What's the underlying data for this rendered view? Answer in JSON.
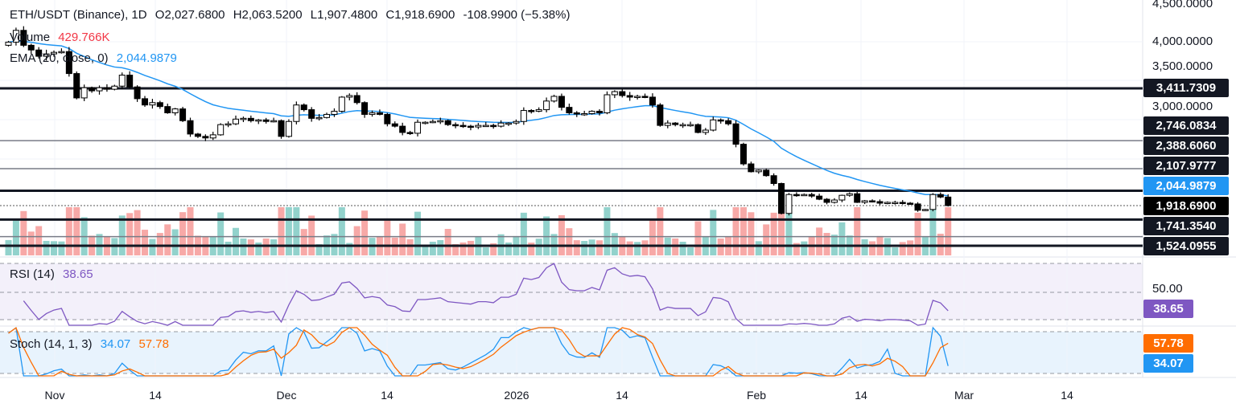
{
  "header": {
    "symbol": "ETH/USDT (Binance), 1D",
    "open": "O2,027.6800",
    "high": "H2,063.5200",
    "low": "L1,907.4800",
    "close": "C1,918.6900",
    "change": "-108.9900 (−5.38%)",
    "volume_label": "Volume",
    "volume_value": "429.766K",
    "ema_label": "EMA (20, close, 0)",
    "ema_value": "2,044.9879"
  },
  "rsi": {
    "label": "RSI (14)",
    "value": "38.65",
    "level_label": "50.00"
  },
  "stoch": {
    "label": "Stoch (14, 1, 3)",
    "k_value": "34.07",
    "d_value": "57.78"
  },
  "price_axis": [
    "4,500.0000",
    "4,000.0000",
    "3,500.0000",
    "3,000.0000"
  ],
  "levels": [
    {
      "label": "3,411.7309",
      "price": 3411.7309,
      "style": "thick"
    },
    {
      "label": "2,746.0834",
      "price": 2746.0834,
      "style": "thin"
    },
    {
      "label": "2,388.6060",
      "price": 2388.606,
      "style": "thin"
    },
    {
      "label": "2,107.9777",
      "price": 2107.9777,
      "style": "thick"
    },
    {
      "label": "2,044.9879",
      "price": 2044.9879,
      "style": "ema"
    },
    {
      "label": "1,918.6900",
      "price": 1918.69,
      "style": "close"
    },
    {
      "label": "1,741.3540",
      "price": 1741.354,
      "style": "thick"
    },
    {
      "label": "1,524.0955",
      "price": 1524.0955,
      "style": "thin"
    }
  ],
  "time_axis": [
    "Nov",
    "14",
    "Dec",
    "14",
    "2026",
    "14",
    "Feb",
    "14",
    "Mar",
    "14"
  ],
  "colors": {
    "up": "#26a69a",
    "down": "#ef5350",
    "ema": "#2196f3",
    "rsi": "#7e57c2",
    "stoch_k": "#2196f3",
    "stoch_d": "#ff6d00"
  },
  "chart_data": {
    "type": "candlestick",
    "title": "ETH/USDT (Binance), 1D",
    "start_date": "2025-10-26",
    "closes": [
      4000,
      4150,
      3960,
      3900,
      3820,
      3850,
      3870,
      3880,
      3600,
      3290,
      3420,
      3380,
      3420,
      3400,
      3440,
      3580,
      3430,
      3280,
      3200,
      3230,
      3180,
      3100,
      3150,
      3000,
      2830,
      2800,
      2780,
      2820,
      2950,
      2960,
      3020,
      3030,
      3000,
      3010,
      2990,
      3000,
      2800,
      2990,
      3200,
      3140,
      3030,
      3040,
      3080,
      3120,
      3300,
      3320,
      3230,
      3080,
      3100,
      3080,
      2960,
      2930,
      2850,
      2840,
      2980,
      2980,
      2990,
      3000,
      2950,
      2940,
      2930,
      2920,
      2940,
      2940,
      2930,
      2970,
      2970,
      2990,
      3130,
      3120,
      3140,
      3250,
      3310,
      3170,
      3100,
      3090,
      3090,
      3120,
      3100,
      3330,
      3370,
      3320,
      3300,
      3310,
      3300,
      3200,
      2940,
      2970,
      2950,
      2950,
      2950,
      2850,
      2880,
      3010,
      3000,
      2960,
      2700,
      2450,
      2350,
      2370,
      2300,
      2200,
      1820,
      2060,
      2050,
      2060,
      2040,
      2000,
      1960,
      1990,
      2050,
      2070,
      1960,
      1980,
      1970,
      1950,
      1960,
      1960,
      1950,
      1940,
      1860,
      1870,
      2060,
      2028,
      1918.69
    ],
    "last_ohlc": {
      "open": 2027.68,
      "high": 2063.52,
      "low": 1907.48,
      "close": 1918.69
    },
    "indicators": [
      "Volume",
      "EMA 20",
      "RSI 14",
      "Stoch 14,1,3"
    ]
  }
}
